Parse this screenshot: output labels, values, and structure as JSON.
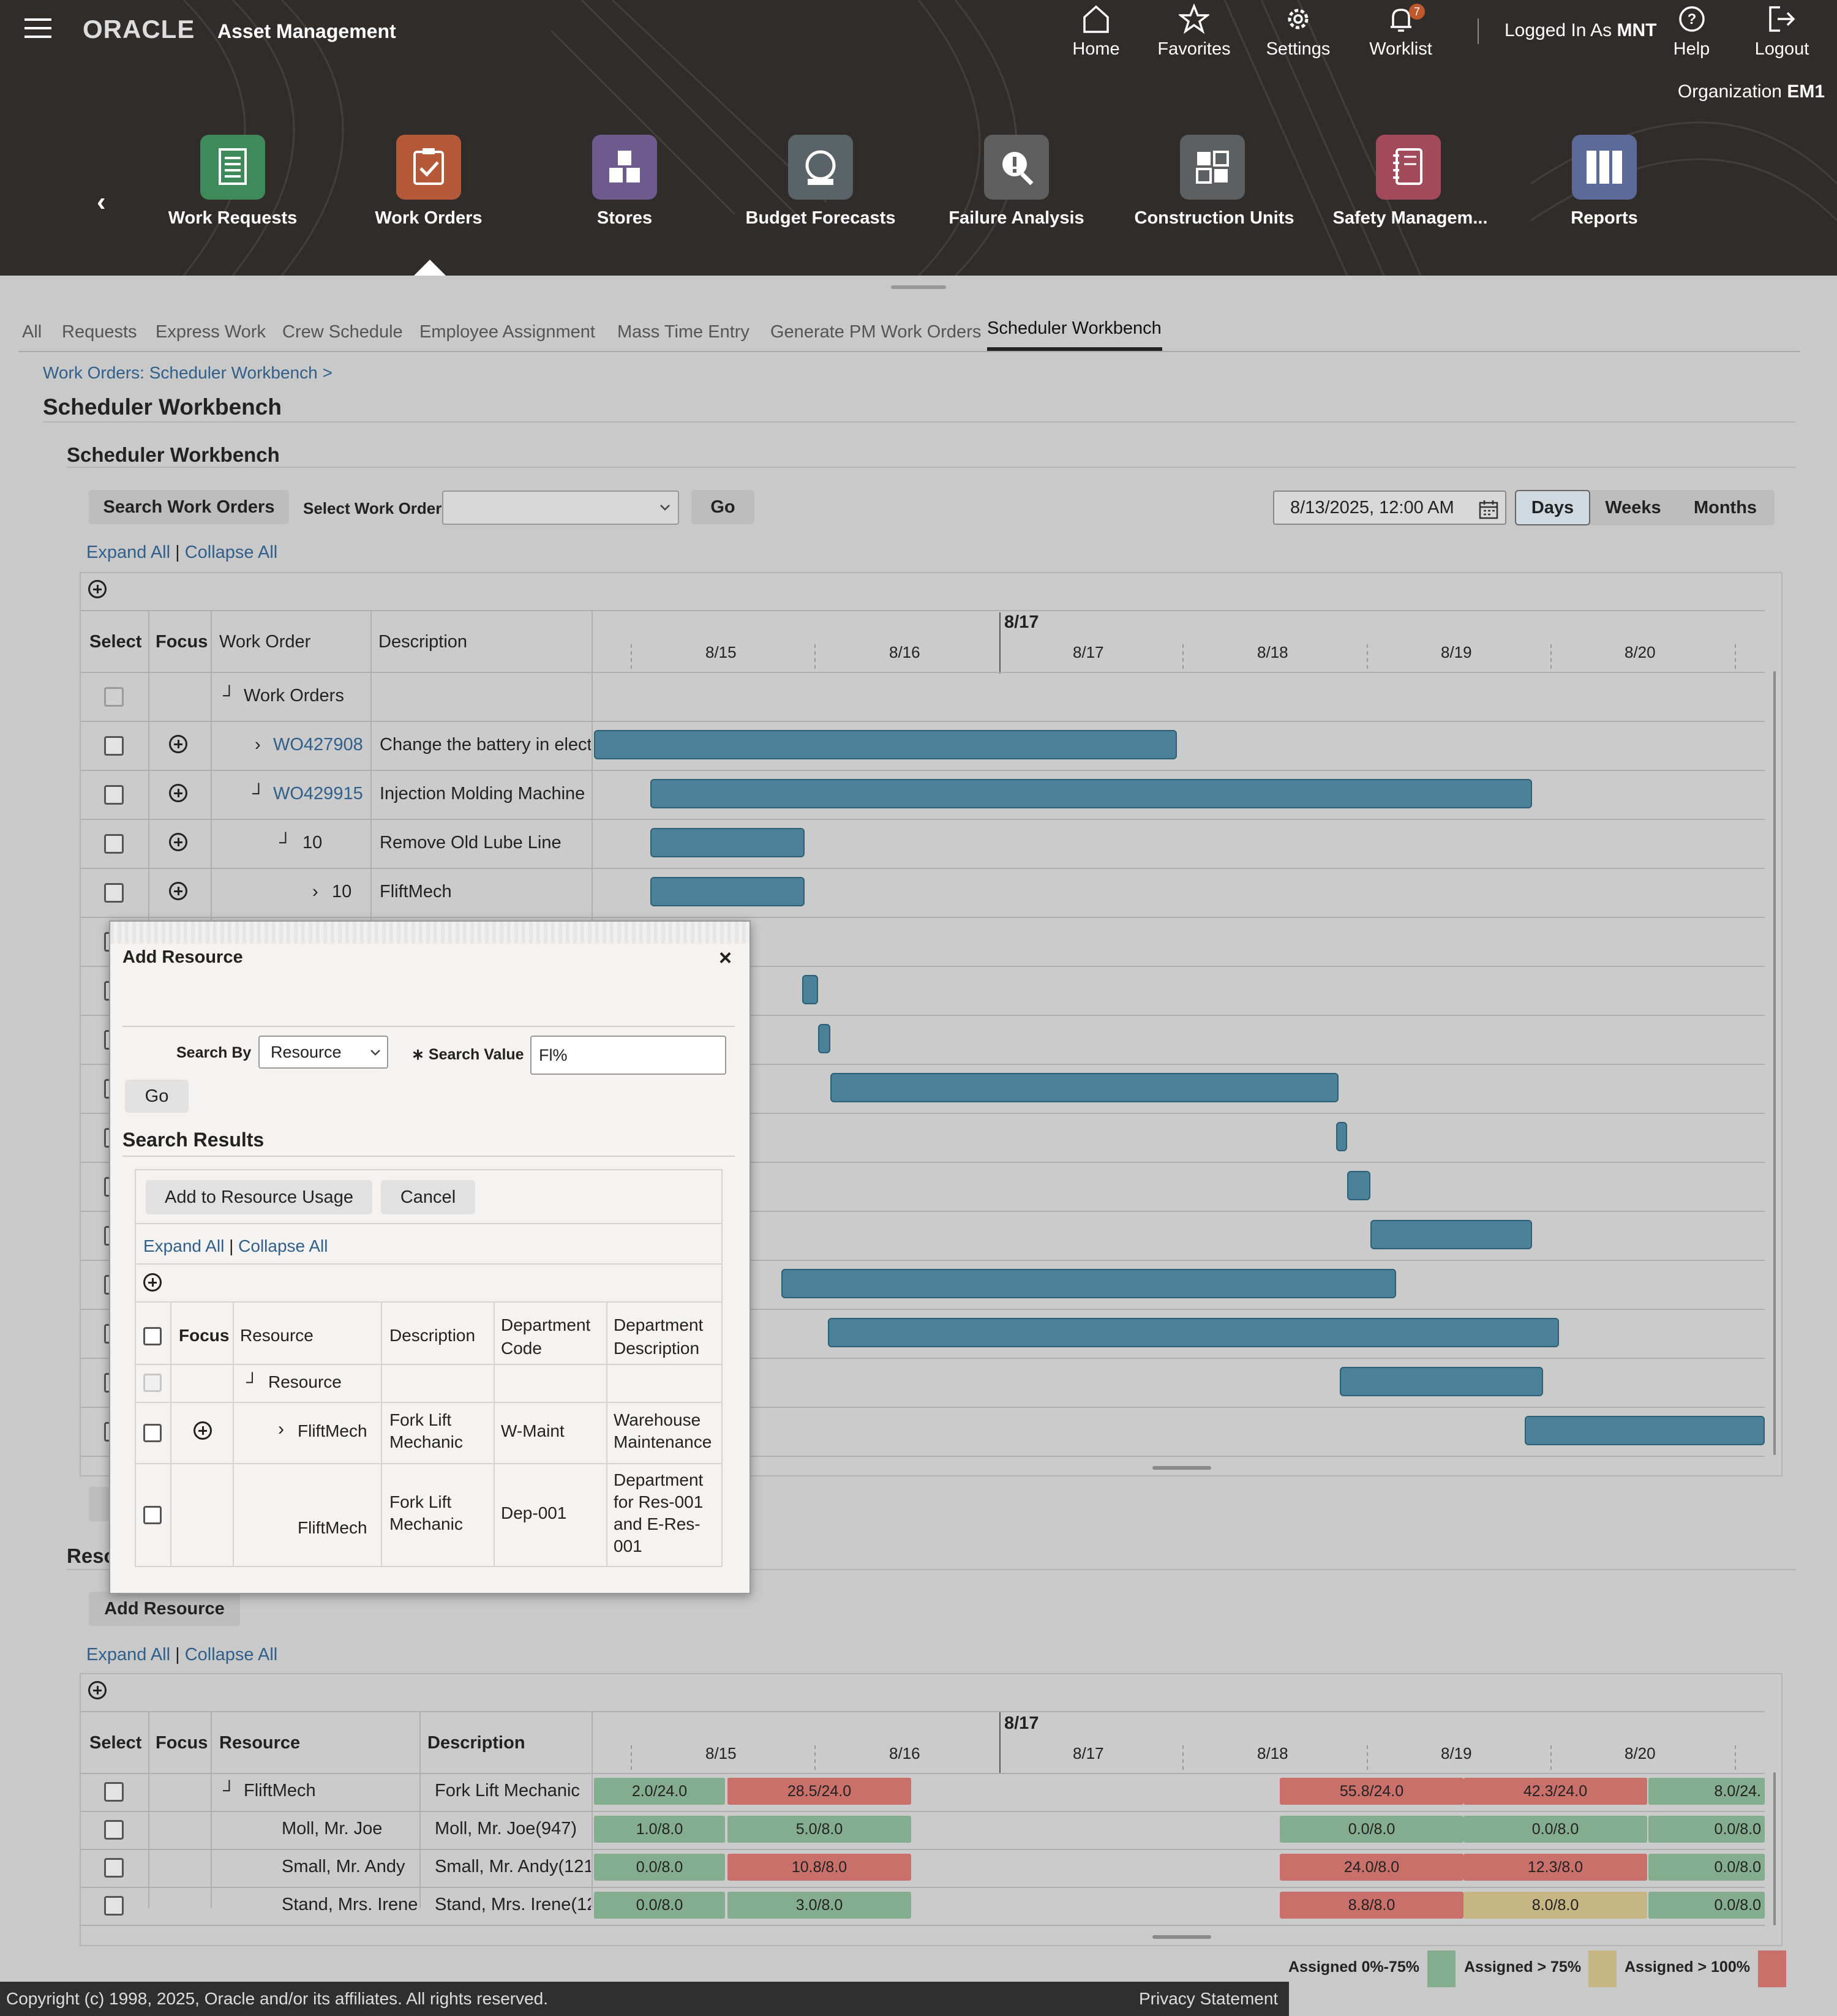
{
  "app": {
    "brand": "ORACLE",
    "title": "Asset Management"
  },
  "topnav": [
    {
      "label": "Home",
      "icon": "home-icon"
    },
    {
      "label": "Favorites",
      "icon": "star-icon"
    },
    {
      "label": "Settings",
      "icon": "gear-icon"
    },
    {
      "label": "Worklist",
      "icon": "bell-icon",
      "badge": "7"
    },
    {
      "label": "Help",
      "icon": "help-icon"
    },
    {
      "label": "Logout",
      "icon": "logout-icon"
    }
  ],
  "user": {
    "prefix": "Logged In As",
    "name": "MNT"
  },
  "org": {
    "prefix": "Organization",
    "name": "EM1"
  },
  "modules": [
    {
      "label": "Work Requests",
      "color": "#3f8a5a"
    },
    {
      "label": "Work Orders",
      "color": "#b45a3a"
    },
    {
      "label": "Stores",
      "color": "#6e5a8c"
    },
    {
      "label": "Budget Forecasts",
      "color": "#5a6468"
    },
    {
      "label": "Failure Analysis",
      "color": "#5f5f5f"
    },
    {
      "label": "Construction Units",
      "color": "#5c6062"
    },
    {
      "label": "Safety Managem...",
      "color": "#a24a5a"
    },
    {
      "label": "Reports",
      "color": "#5c6a9a"
    }
  ],
  "tabs": [
    "All",
    "Requests",
    "Express Work",
    "Crew Schedule",
    "Employee Assignment",
    "Mass Time Entry",
    "Generate PM Work Orders",
    "Scheduler Workbench"
  ],
  "breadcrumb": "Work Orders: Scheduler Workbench",
  "breadcrumb_sep": ">",
  "page_title": "Scheduler Workbench",
  "section_title": "Scheduler Workbench",
  "toolbar": {
    "search_btn": "Search Work Orders",
    "select_label": "Select Work Order",
    "select_value": "",
    "go": "Go",
    "date": "8/13/2025, 12:00 AM",
    "views": [
      "Days",
      "Weeks",
      "Months"
    ],
    "active_view": "Days"
  },
  "expand_all": "Expand All",
  "collapse_all": "Collapse All",
  "sep": "|",
  "wo_table": {
    "headers": [
      "Select",
      "Focus",
      "Work Order",
      "Description"
    ],
    "timeline_top": "8/17",
    "dates": [
      "8/15",
      "8/16",
      "8/17",
      "8/18",
      "8/19",
      "8/20"
    ],
    "rows": [
      {
        "wo": "Work Orders",
        "desc": "",
        "link": false
      },
      {
        "wo": "WO427908",
        "desc": "Change the battery in electr",
        "link": true,
        "chev": "right"
      },
      {
        "wo": "WO429915",
        "desc": "Injection Molding Machine I",
        "link": true,
        "chev": "down"
      },
      {
        "wo": "10",
        "desc": "Remove Old Lube Line",
        "link": false,
        "chev": "down"
      },
      {
        "wo": "10",
        "desc": "FliftMech",
        "link": false,
        "chev": "right"
      }
    ]
  },
  "resource_section_title": "Reso",
  "add_resource_btn": "Add Resource",
  "res_table": {
    "headers": [
      "Select",
      "Focus",
      "Resource",
      "Description"
    ],
    "timeline_top": "8/17",
    "dates": [
      "8/15",
      "8/16",
      "8/17",
      "8/18",
      "8/19",
      "8/20"
    ],
    "rows": [
      {
        "res": "FliftMech",
        "desc": "Fork Lift Mechanic",
        "cells": [
          "2.0/24.0",
          "28.5/24.0",
          "55.8/24.0",
          "42.3/24.0",
          "8.0/24."
        ]
      },
      {
        "res": "Moll, Mr. Joe",
        "desc": "Moll, Mr. Joe(947)",
        "cells": [
          "1.0/8.0",
          "5.0/8.0",
          "0.0/8.0",
          "0.0/8.0",
          "0.0/8.0"
        ]
      },
      {
        "res": "Small, Mr. Andy",
        "desc": "Small, Mr. Andy(121",
        "cells": [
          "0.0/8.0",
          "10.8/8.0",
          "24.0/8.0",
          "12.3/8.0",
          "0.0/8.0"
        ]
      },
      {
        "res": "Stand, Mrs. Irene",
        "desc": "Stand, Mrs. Irene(12",
        "cells": [
          "0.0/8.0",
          "3.0/8.0",
          "8.8/8.0",
          "8.0/8.0",
          "0.0/8.0"
        ]
      }
    ]
  },
  "legend": [
    {
      "label": "Assigned 0%-75%",
      "color": "#84ad8f"
    },
    {
      "label": "Assigned > 75%",
      "color": "#c6b684"
    },
    {
      "label": "Assigned > 100%",
      "color": "#c9706a"
    }
  ],
  "footer": {
    "copyright": "Copyright (c) 1998, 2025, Oracle and/or its affiliates. All rights reserved.",
    "privacy": "Privacy Statement"
  },
  "dialog": {
    "title": "Add Resource",
    "search_by_label": "Search By",
    "search_by_value": "Resource",
    "search_value_label": "Search Value",
    "required_mark": "∗",
    "search_value": "Fl%",
    "go": "Go",
    "results_title": "Search Results",
    "add_btn": "Add to Resource Usage",
    "cancel_btn": "Cancel",
    "expand_all": "Expand All",
    "collapse_all": "Collapse All",
    "sep": "|",
    "headers": [
      "Focus",
      "Resource",
      "Description",
      "Department Code",
      "Department Description"
    ],
    "rows": [
      {
        "res": "Resource",
        "desc": "",
        "code": "",
        "ddesc": ""
      },
      {
        "res": "FliftMech",
        "desc": "Fork Lift Mechanic",
        "code": "W-Maint",
        "ddesc": "Warehouse Maintenance"
      },
      {
        "res": "FliftMech",
        "desc": "Fork Lift Mechanic",
        "code": "Dep-001",
        "ddesc": "Department for Res-001 and E-Res-001"
      }
    ]
  }
}
